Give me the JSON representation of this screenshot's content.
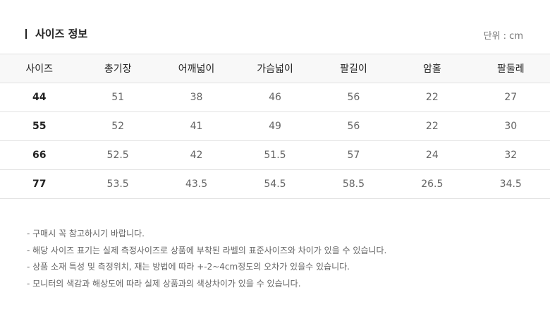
{
  "title": "사이즈 정보",
  "unit": "단위 : cm",
  "table": {
    "headers": [
      "사이즈",
      "총기장",
      "어깨넓이",
      "가슴넓이",
      "팔길이",
      "암홀",
      "팔둘레"
    ],
    "rows": [
      [
        "44",
        "51",
        "38",
        "46",
        "56",
        "22",
        "27"
      ],
      [
        "55",
        "52",
        "41",
        "49",
        "56",
        "22",
        "30"
      ],
      [
        "66",
        "52.5",
        "42",
        "51.5",
        "57",
        "24",
        "32"
      ],
      [
        "77",
        "53.5",
        "43.5",
        "54.5",
        "58.5",
        "26.5",
        "34.5"
      ]
    ]
  },
  "notes": [
    "- 구매시 꼭 참고하시기 바랍니다.",
    "- 해당 사이즈 표기는 실제 측정사이즈로 상품에 부착된 라벨의 표준사이즈와 차이가 있을 수 있습니다.",
    "- 상품 소재 특성 및 측정위치, 재는 방법에 따라 +-2~4cm정도의 오차가 있을수 있습니다.",
    "- 모니터의 색감과 해상도에 따라 실제 상품과의 색상차이가 있을 수 있습니다."
  ]
}
